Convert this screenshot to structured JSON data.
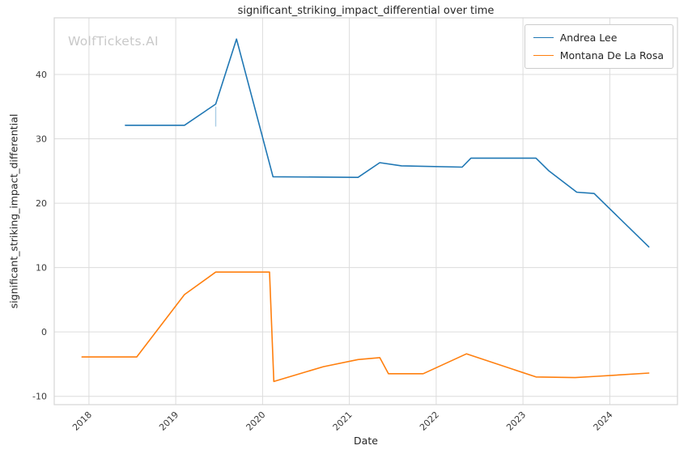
{
  "watermark": "WolfTickets.AI",
  "chart_data": {
    "type": "line",
    "title": "significant_striking_impact_differential over time",
    "xlabel": "Date",
    "ylabel": "significant_striking_impact_differential",
    "xlim": [
      2017.6,
      2024.78
    ],
    "ylim": [
      -11.3,
      48.8
    ],
    "x_ticks": [
      2018,
      2019,
      2020,
      2021,
      2022,
      2023,
      2024
    ],
    "y_ticks": [
      -10,
      0,
      10,
      20,
      30,
      40
    ],
    "grid": true,
    "grid_color": "#dcdcdc",
    "spine_color": "#d5d5d5",
    "tick_label_color": "#3a3a3a",
    "legend_position": "upper right",
    "series": [
      {
        "name": "Andrea Lee",
        "color": "#1f77b4",
        "points": [
          [
            2018.42,
            32.1
          ],
          [
            2019.1,
            32.1
          ],
          [
            2019.46,
            35.4
          ],
          [
            2019.7,
            45.5
          ],
          [
            2020.12,
            24.1
          ],
          [
            2021.1,
            24.0
          ],
          [
            2021.35,
            26.3
          ],
          [
            2021.6,
            25.8
          ],
          [
            2022.3,
            25.6
          ],
          [
            2022.4,
            27.0
          ],
          [
            2023.15,
            27.0
          ],
          [
            2023.3,
            25.0
          ],
          [
            2023.62,
            21.7
          ],
          [
            2023.82,
            21.5
          ],
          [
            2024.45,
            13.2
          ]
        ]
      },
      {
        "name": "Montana De La Rosa",
        "color": "#ff7f0e",
        "points": [
          [
            2017.92,
            -3.9
          ],
          [
            2018.55,
            -3.9
          ],
          [
            2019.1,
            5.8
          ],
          [
            2019.46,
            9.3
          ],
          [
            2020.08,
            9.3
          ],
          [
            2020.13,
            -7.7
          ],
          [
            2020.7,
            -5.4
          ],
          [
            2021.1,
            -4.3
          ],
          [
            2021.35,
            -4.0
          ],
          [
            2021.45,
            -6.5
          ],
          [
            2021.85,
            -6.5
          ],
          [
            2022.35,
            -3.4
          ],
          [
            2023.15,
            -7.0
          ],
          [
            2023.6,
            -7.1
          ],
          [
            2023.85,
            -6.9
          ],
          [
            2024.45,
            -6.4
          ]
        ]
      }
    ],
    "annotations": [
      {
        "type": "faint-vertical-segment",
        "color": "#aacde6",
        "x": 2019.46,
        "y1": 31.9,
        "y2": 35.0
      }
    ]
  }
}
